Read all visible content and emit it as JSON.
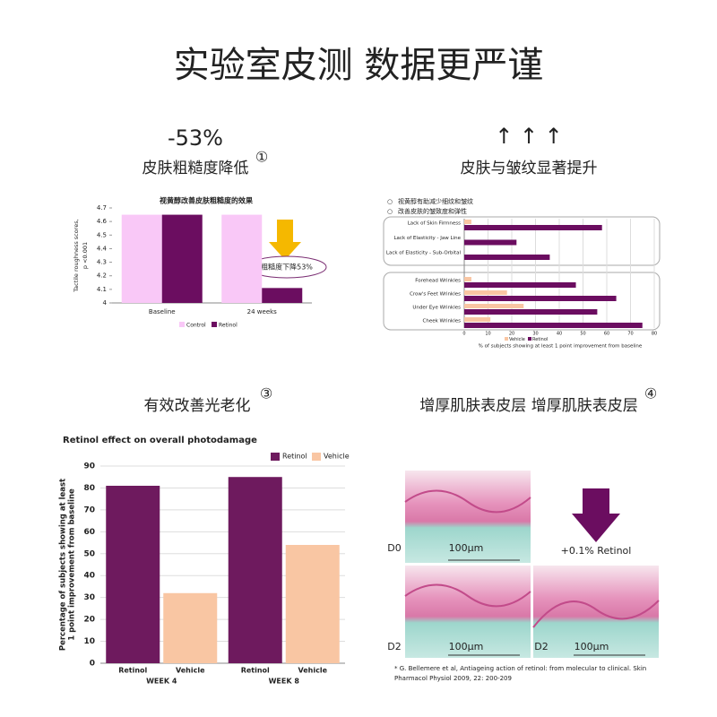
{
  "page": {
    "title": "实验室皮测 数据更严谨",
    "panels": [
      {
        "stat": "-53%",
        "heading": "皮肤粗糙度降低",
        "number": "①"
      },
      {
        "stat": "↑ ↑ ↑",
        "heading": "皮肤与皱纹显著提升"
      },
      {
        "heading": "有效改善光老化",
        "number": "③"
      },
      {
        "heading": "增厚肌肤表皮层 增厚肌肤表皮层",
        "number": "④",
        "labels": [
          "D0",
          "D2",
          "D2"
        ],
        "scale": [
          "100μm",
          "100μm",
          "100μm"
        ],
        "treatment": "+0.1% Retinol",
        "footnote": [
          "* G. Bellemere et al, Antiageing action of retinol: from molecular to clinical. Skin",
          "Pharmacol Physiol 2009, 22: 200-209"
        ]
      }
    ]
  },
  "chart_data": [
    {
      "type": "bar",
      "title": "视黄醇改善皮肤粗糙度的效果",
      "ylabel": [
        "Tactile roughness scores,",
        "p <0.001"
      ],
      "categories": [
        "Baseline",
        "24 weeks"
      ],
      "series": [
        {
          "name": "Control",
          "color": "#f9c8f7",
          "values": [
            4.65,
            4.65
          ]
        },
        {
          "name": "Retinol",
          "color": "#6b0d60",
          "values": [
            4.65,
            4.11
          ]
        }
      ],
      "ylim": [
        4,
        4.7
      ],
      "yticks": [
        4,
        4.1,
        4.2,
        4.3,
        4.4,
        4.5,
        4.6,
        4.7
      ],
      "grid": false,
      "annotation": "粗糙度下降53%",
      "legend": "bottom"
    },
    {
      "type": "barh",
      "notes": [
        "视黄醇有助减少细纹和皱纹",
        "改善皮肤的皱致度和弹性"
      ],
      "categories": [
        "Lack of Skin Firmness",
        "Lack of Elasticity - Jaw Line",
        "Lack of Elasticity - Sub-Orbital",
        "Forehead Wrinkles",
        "Crow's Feet Wrinkles",
        "Under Eye Wrinkles",
        "Cheek Wrinkles"
      ],
      "series": [
        {
          "name": "Vehicle",
          "color": "#f9c6a3",
          "values": [
            3,
            0,
            0,
            3,
            18,
            25,
            11
          ]
        },
        {
          "name": "Retinol",
          "color": "#6b0d60",
          "values": [
            58,
            22,
            36,
            47,
            64,
            56,
            75
          ]
        }
      ],
      "xlim": [
        0,
        80
      ],
      "xticks": [
        0,
        10,
        20,
        30,
        40,
        50,
        60,
        70,
        80
      ],
      "xlabel": "% of subjects showing at least 1 point improvement from baseline",
      "grid": true,
      "legend": "bottom"
    },
    {
      "type": "bar",
      "title": "Retinol effect on overall photodamage",
      "ylabel": [
        "Percentage of subjects showing at least",
        "1 point improvement from baseline"
      ],
      "categories": [
        "WEEK 4",
        "WEEK 8"
      ],
      "series": [
        {
          "name": "Retinol",
          "color": "#6e1a5e",
          "values": [
            81,
            85
          ]
        },
        {
          "name": "Vehicle",
          "color": "#f9c6a3",
          "values": [
            32,
            54
          ]
        }
      ],
      "ylim": [
        0,
        90
      ],
      "yticks": [
        0,
        10,
        20,
        30,
        40,
        50,
        60,
        70,
        80,
        90
      ],
      "grid": true,
      "legend": "top-right"
    }
  ]
}
